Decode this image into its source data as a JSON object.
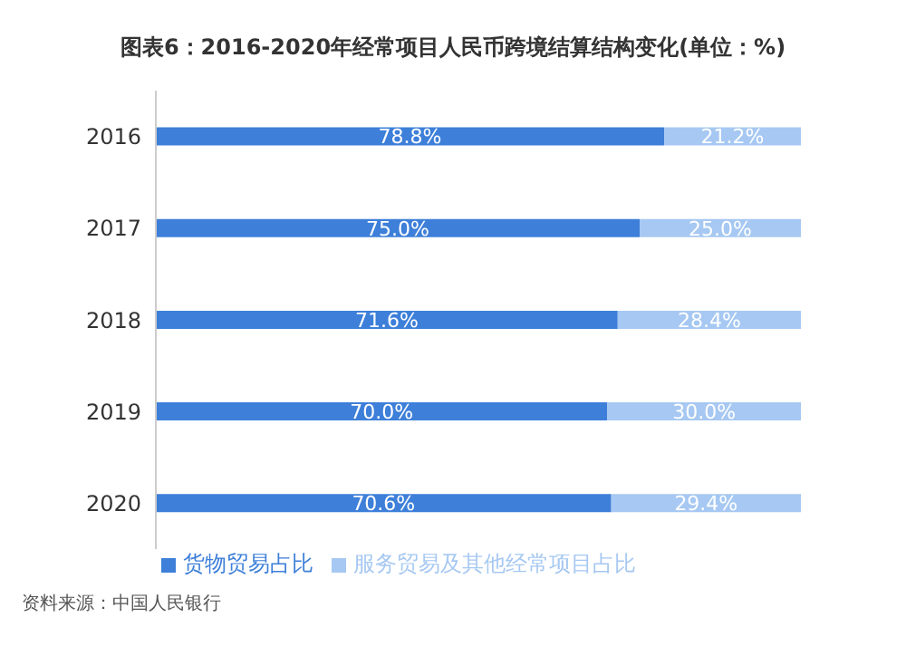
{
  "chart_data": {
    "type": "bar",
    "orientation": "horizontal",
    "stacked": true,
    "title": "图表6：2016-2020年经常项目人民币跨境结算结构变化(单位：%)",
    "categories": [
      "2016",
      "2017",
      "2018",
      "2019",
      "2020"
    ],
    "xlim": [
      0,
      100
    ],
    "tick_labels": "y",
    "grid": false,
    "legend": "bottom",
    "series": [
      {
        "name": "货物贸易占比",
        "color": "#3d7fd9",
        "values": [
          78.8,
          75.0,
          71.6,
          70.0,
          70.6
        ],
        "value_labels": [
          "78.8%",
          "75.0%",
          "71.6%",
          "70.0%",
          "70.6%"
        ]
      },
      {
        "name": "服务贸易及其他经常项目占比",
        "color": "#a6c8f2",
        "values": [
          21.2,
          25.0,
          28.4,
          30.0,
          29.4
        ],
        "value_labels": [
          "21.2%",
          "25.0%",
          "28.4%",
          "30.0%",
          "29.4%"
        ]
      }
    ],
    "annotations": [
      "资料来源：中国人民银行"
    ]
  }
}
